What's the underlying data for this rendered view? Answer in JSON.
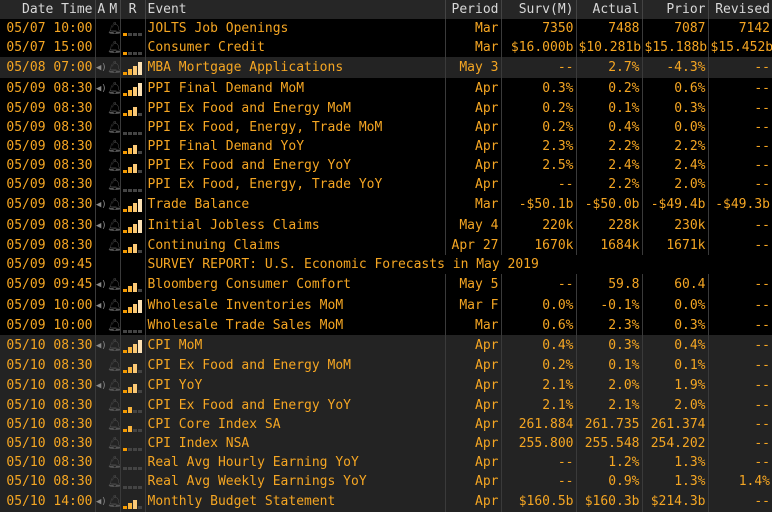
{
  "headers": {
    "date_time": "Date Time",
    "a": "A",
    "m": "M",
    "r": "R",
    "event": "Event",
    "period": "Period",
    "surv": "Surv(M)",
    "actual": "Actual",
    "prior": "Prior",
    "revised": "Revised"
  },
  "rows": [
    {
      "dt": "05/07 10:00",
      "audio": false,
      "bell": true,
      "rel": 1,
      "event": "JOLTS Job Openings",
      "period": "Mar",
      "surv": "7350",
      "actual": "7488",
      "prior": "7087",
      "revised": "7142",
      "hl": false
    },
    {
      "dt": "05/07 15:00",
      "audio": false,
      "bell": true,
      "rel": 1,
      "event": "Consumer Credit",
      "period": "Mar",
      "surv": "$16.000b",
      "actual": "$10.281b",
      "prior": "$15.188b",
      "revised": "$15.452b",
      "hl": false
    },
    {
      "dt": "05/08 07:00",
      "audio": true,
      "bell": true,
      "rel": 4,
      "event": "MBA Mortgage Applications",
      "period": "May 3",
      "surv": "--",
      "actual": "2.7%",
      "prior": "-4.3%",
      "revised": "--",
      "hl": true
    },
    {
      "dt": "05/09 08:30",
      "audio": true,
      "bell": true,
      "rel": 4,
      "event": "PPI Final Demand MoM",
      "period": "Apr",
      "surv": "0.3%",
      "actual": "0.2%",
      "prior": "0.6%",
      "revised": "--",
      "hl": false
    },
    {
      "dt": "05/09 08:30",
      "audio": false,
      "bell": true,
      "rel": 3,
      "event": "PPI Ex Food and Energy MoM",
      "period": "Apr",
      "surv": "0.2%",
      "actual": "0.1%",
      "prior": "0.3%",
      "revised": "--",
      "hl": false
    },
    {
      "dt": "05/09 08:30",
      "audio": false,
      "bell": true,
      "rel": 0,
      "event": "PPI Ex Food, Energy, Trade MoM",
      "period": "Apr",
      "surv": "0.2%",
      "actual": "0.4%",
      "prior": "0.0%",
      "revised": "--",
      "hl": false
    },
    {
      "dt": "05/09 08:30",
      "audio": false,
      "bell": true,
      "rel": 3,
      "event": "PPI Final Demand YoY",
      "period": "Apr",
      "surv": "2.3%",
      "actual": "2.2%",
      "prior": "2.2%",
      "revised": "--",
      "hl": false
    },
    {
      "dt": "05/09 08:30",
      "audio": false,
      "bell": true,
      "rel": 3,
      "event": "PPI Ex Food and Energy YoY",
      "period": "Apr",
      "surv": "2.5%",
      "actual": "2.4%",
      "prior": "2.4%",
      "revised": "--",
      "hl": false
    },
    {
      "dt": "05/09 08:30",
      "audio": false,
      "bell": true,
      "rel": 0,
      "event": "PPI Ex Food, Energy, Trade YoY",
      "period": "Apr",
      "surv": "--",
      "actual": "2.2%",
      "prior": "2.0%",
      "revised": "--",
      "hl": false
    },
    {
      "dt": "05/09 08:30",
      "audio": true,
      "bell": true,
      "rel": 4,
      "event": "Trade Balance",
      "period": "Mar",
      "surv": "-$50.1b",
      "actual": "-$50.0b",
      "prior": "-$49.4b",
      "revised": "-$49.3b",
      "hl": false
    },
    {
      "dt": "05/09 08:30",
      "audio": true,
      "bell": true,
      "rel": 4,
      "event": "Initial Jobless Claims",
      "period": "May 4",
      "surv": "220k",
      "actual": "228k",
      "prior": "230k",
      "revised": "--",
      "hl": false
    },
    {
      "dt": "05/09 08:30",
      "audio": false,
      "bell": true,
      "rel": 3,
      "event": "Continuing Claims",
      "period": "Apr 27",
      "surv": "1670k",
      "actual": "1684k",
      "prior": "1671k",
      "revised": "--",
      "hl": false
    },
    {
      "dt": "05/09 09:45",
      "audio": false,
      "bell": false,
      "rel": null,
      "event": "SURVEY REPORT: U.S. Economic Forecasts in May 2019",
      "period": "",
      "surv": "",
      "actual": "",
      "prior": "",
      "revised": "",
      "hl": false,
      "span": true
    },
    {
      "dt": "05/09 09:45",
      "audio": true,
      "bell": true,
      "rel": 3,
      "event": "Bloomberg Consumer Comfort",
      "period": "May 5",
      "surv": "--",
      "actual": "59.8",
      "prior": "60.4",
      "revised": "--",
      "hl": false
    },
    {
      "dt": "05/09 10:00",
      "audio": true,
      "bell": true,
      "rel": 4,
      "event": "Wholesale Inventories MoM",
      "period": "Mar F",
      "surv": "0.0%",
      "actual": "-0.1%",
      "prior": "0.0%",
      "revised": "--",
      "hl": false
    },
    {
      "dt": "05/09 10:00",
      "audio": false,
      "bell": true,
      "rel": 0,
      "event": "Wholesale Trade Sales MoM",
      "period": "Mar",
      "surv": "0.6%",
      "actual": "2.3%",
      "prior": "0.3%",
      "revised": "--",
      "hl": false
    },
    {
      "dt": "05/10 08:30",
      "audio": true,
      "bell": true,
      "rel": 4,
      "event": "CPI MoM",
      "period": "Apr",
      "surv": "0.4%",
      "actual": "0.3%",
      "prior": "0.4%",
      "revised": "--",
      "hl": true
    },
    {
      "dt": "05/10 08:30",
      "audio": false,
      "bell": true,
      "rel": 3,
      "event": "CPI Ex Food and Energy MoM",
      "period": "Apr",
      "surv": "0.2%",
      "actual": "0.1%",
      "prior": "0.1%",
      "revised": "--",
      "hl": true
    },
    {
      "dt": "05/10 08:30",
      "audio": true,
      "bell": true,
      "rel": 3,
      "event": "CPI YoY",
      "period": "Apr",
      "surv": "2.1%",
      "actual": "2.0%",
      "prior": "1.9%",
      "revised": "--",
      "hl": true
    },
    {
      "dt": "05/10 08:30",
      "audio": false,
      "bell": true,
      "rel": 2,
      "event": "CPI Ex Food and Energy YoY",
      "period": "Apr",
      "surv": "2.1%",
      "actual": "2.1%",
      "prior": "2.0%",
      "revised": "--",
      "hl": true
    },
    {
      "dt": "05/10 08:30",
      "audio": false,
      "bell": true,
      "rel": 2,
      "event": "CPI Core Index SA",
      "period": "Apr",
      "surv": "261.884",
      "actual": "261.735",
      "prior": "261.374",
      "revised": "--",
      "hl": true
    },
    {
      "dt": "05/10 08:30",
      "audio": false,
      "bell": true,
      "rel": 1,
      "event": "CPI Index NSA",
      "period": "Apr",
      "surv": "255.800",
      "actual": "255.548",
      "prior": "254.202",
      "revised": "--",
      "hl": true
    },
    {
      "dt": "05/10 08:30",
      "audio": false,
      "bell": true,
      "rel": 0,
      "event": "Real Avg Hourly Earning YoY",
      "period": "Apr",
      "surv": "--",
      "actual": "1.2%",
      "prior": "1.3%",
      "revised": "--",
      "hl": true
    },
    {
      "dt": "05/10 08:30",
      "audio": false,
      "bell": true,
      "rel": 0,
      "event": "Real Avg Weekly Earnings YoY",
      "period": "Apr",
      "surv": "--",
      "actual": "0.9%",
      "prior": "1.3%",
      "revised": "1.4%",
      "hl": true
    },
    {
      "dt": "05/10 14:00",
      "audio": true,
      "bell": true,
      "rel": 3,
      "event": "Monthly Budget Statement",
      "period": "Apr",
      "surv": "$160.5b",
      "actual": "$160.3b",
      "prior": "$214.3b",
      "revised": "--",
      "hl": true
    }
  ]
}
